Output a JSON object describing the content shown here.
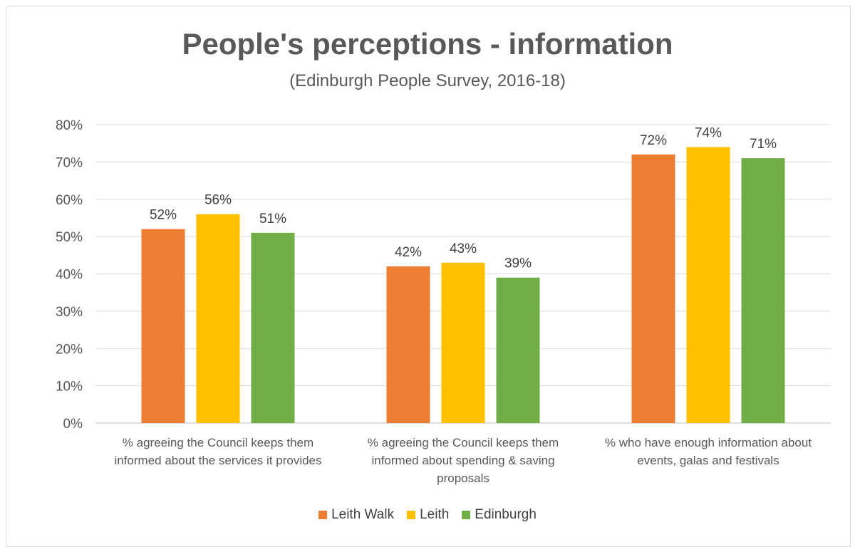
{
  "chart_data": {
    "type": "bar",
    "title": "People's perceptions - information",
    "subtitle": "(Edinburgh People Survey, 2016-18)",
    "categories": [
      [
        "% agreeing the Council keeps them",
        "informed about the services it provides"
      ],
      [
        "% agreeing the Council keeps them",
        "informed about spending & saving",
        "proposals"
      ],
      [
        "% who have enough information about",
        "events, galas and festivals"
      ]
    ],
    "series": [
      {
        "name": "Leith Walk",
        "color": "#ED7D31",
        "values": [
          52,
          42,
          72
        ],
        "labels": [
          "52%",
          "42%",
          "72%"
        ]
      },
      {
        "name": "Leith",
        "color": "#FFC000",
        "values": [
          56,
          43,
          74
        ],
        "labels": [
          "56%",
          "43%",
          "74%"
        ]
      },
      {
        "name": "Edinburgh",
        "color": "#70AD47",
        "values": [
          51,
          39,
          71
        ],
        "labels": [
          "51%",
          "39%",
          "71%"
        ]
      }
    ],
    "ylim": [
      0,
      80
    ],
    "yticks": [
      0,
      10,
      20,
      30,
      40,
      50,
      60,
      70,
      80
    ],
    "ytick_labels": [
      "0%",
      "10%",
      "20%",
      "30%",
      "40%",
      "50%",
      "60%",
      "70%",
      "80%"
    ],
    "grid": true,
    "legend_position": "bottom"
  }
}
